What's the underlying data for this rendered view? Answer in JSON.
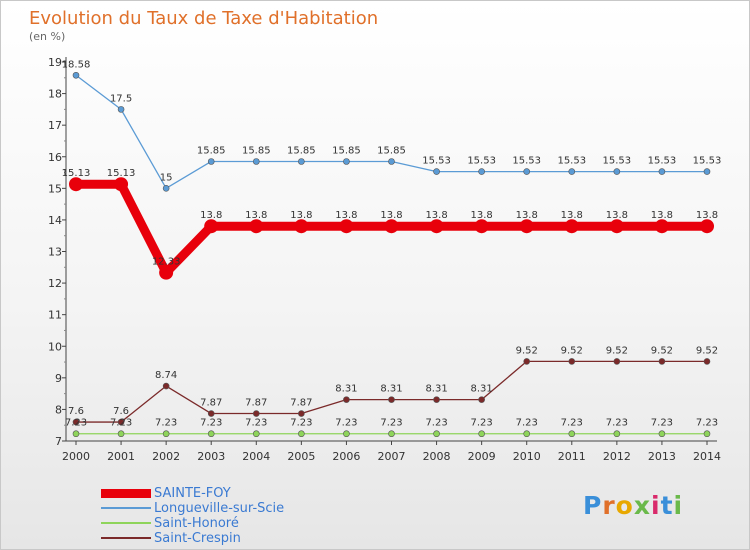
{
  "title": "Evolution du Taux de Taxe d'Habitation",
  "unit": "(en %)",
  "logo": "Proxiti",
  "chart_data": {
    "type": "line",
    "x": [
      "2000",
      "2001",
      "2002",
      "2003",
      "2004",
      "2005",
      "2006",
      "2007",
      "2008",
      "2009",
      "2010",
      "2011",
      "2012",
      "2013",
      "2014"
    ],
    "ylim": [
      7,
      19
    ],
    "yticks": [
      "7",
      "8",
      "9",
      "10",
      "11",
      "12",
      "13",
      "14",
      "15",
      "16",
      "17",
      "18",
      "19"
    ],
    "grid": false,
    "legend_position": "bottom-left",
    "series": [
      {
        "name": "SAINTE-FOY",
        "color": "#e8000b",
        "highlight": true,
        "values": [
          15.13,
          15.13,
          12.33,
          13.8,
          13.8,
          13.8,
          13.8,
          13.8,
          13.8,
          13.8,
          13.8,
          13.8,
          13.8,
          13.8,
          13.8
        ],
        "labels": [
          "15.13",
          "15.13",
          "12.33",
          "13.8",
          "13.8",
          "13.8",
          "13.8",
          "13.8",
          "13.8",
          "13.8",
          "13.8",
          "13.8",
          "13.8",
          "13.8",
          "13.8"
        ]
      },
      {
        "name": "Longueville-sur-Scie",
        "color": "#5b9bd5",
        "values": [
          18.58,
          17.5,
          15,
          15.85,
          15.85,
          15.85,
          15.85,
          15.85,
          15.53,
          15.53,
          15.53,
          15.53,
          15.53,
          15.53,
          15.53
        ],
        "labels": [
          "18.58",
          "17.5",
          "15",
          "15.85",
          "15.85",
          "15.85",
          "15.85",
          "15.85",
          "15.53",
          "15.53",
          "15.53",
          "15.53",
          "15.53",
          "15.53",
          "15.53"
        ]
      },
      {
        "name": "Saint-Honoré",
        "color": "#8ed45a",
        "values": [
          7.23,
          7.23,
          7.23,
          7.23,
          7.23,
          7.23,
          7.23,
          7.23,
          7.23,
          7.23,
          7.23,
          7.23,
          7.23,
          7.23,
          7.23
        ],
        "labels": [
          "7.23",
          "7.23",
          "7.23",
          "7.23",
          "7.23",
          "7.23",
          "7.23",
          "7.23",
          "7.23",
          "7.23",
          "7.23",
          "7.23",
          "7.23",
          "7.23",
          "7.23"
        ]
      },
      {
        "name": "Saint-Crespin",
        "color": "#7b2a2a",
        "values": [
          7.6,
          7.6,
          8.74,
          7.87,
          7.87,
          7.87,
          8.31,
          8.31,
          8.31,
          8.31,
          9.52,
          9.52,
          9.52,
          9.52,
          9.52
        ],
        "labels": [
          "7.6",
          "7.6",
          "8.74",
          "7.87",
          "7.87",
          "7.87",
          "8.31",
          "8.31",
          "8.31",
          "8.31",
          "9.52",
          "9.52",
          "9.52",
          "9.52",
          "9.52"
        ]
      }
    ]
  }
}
